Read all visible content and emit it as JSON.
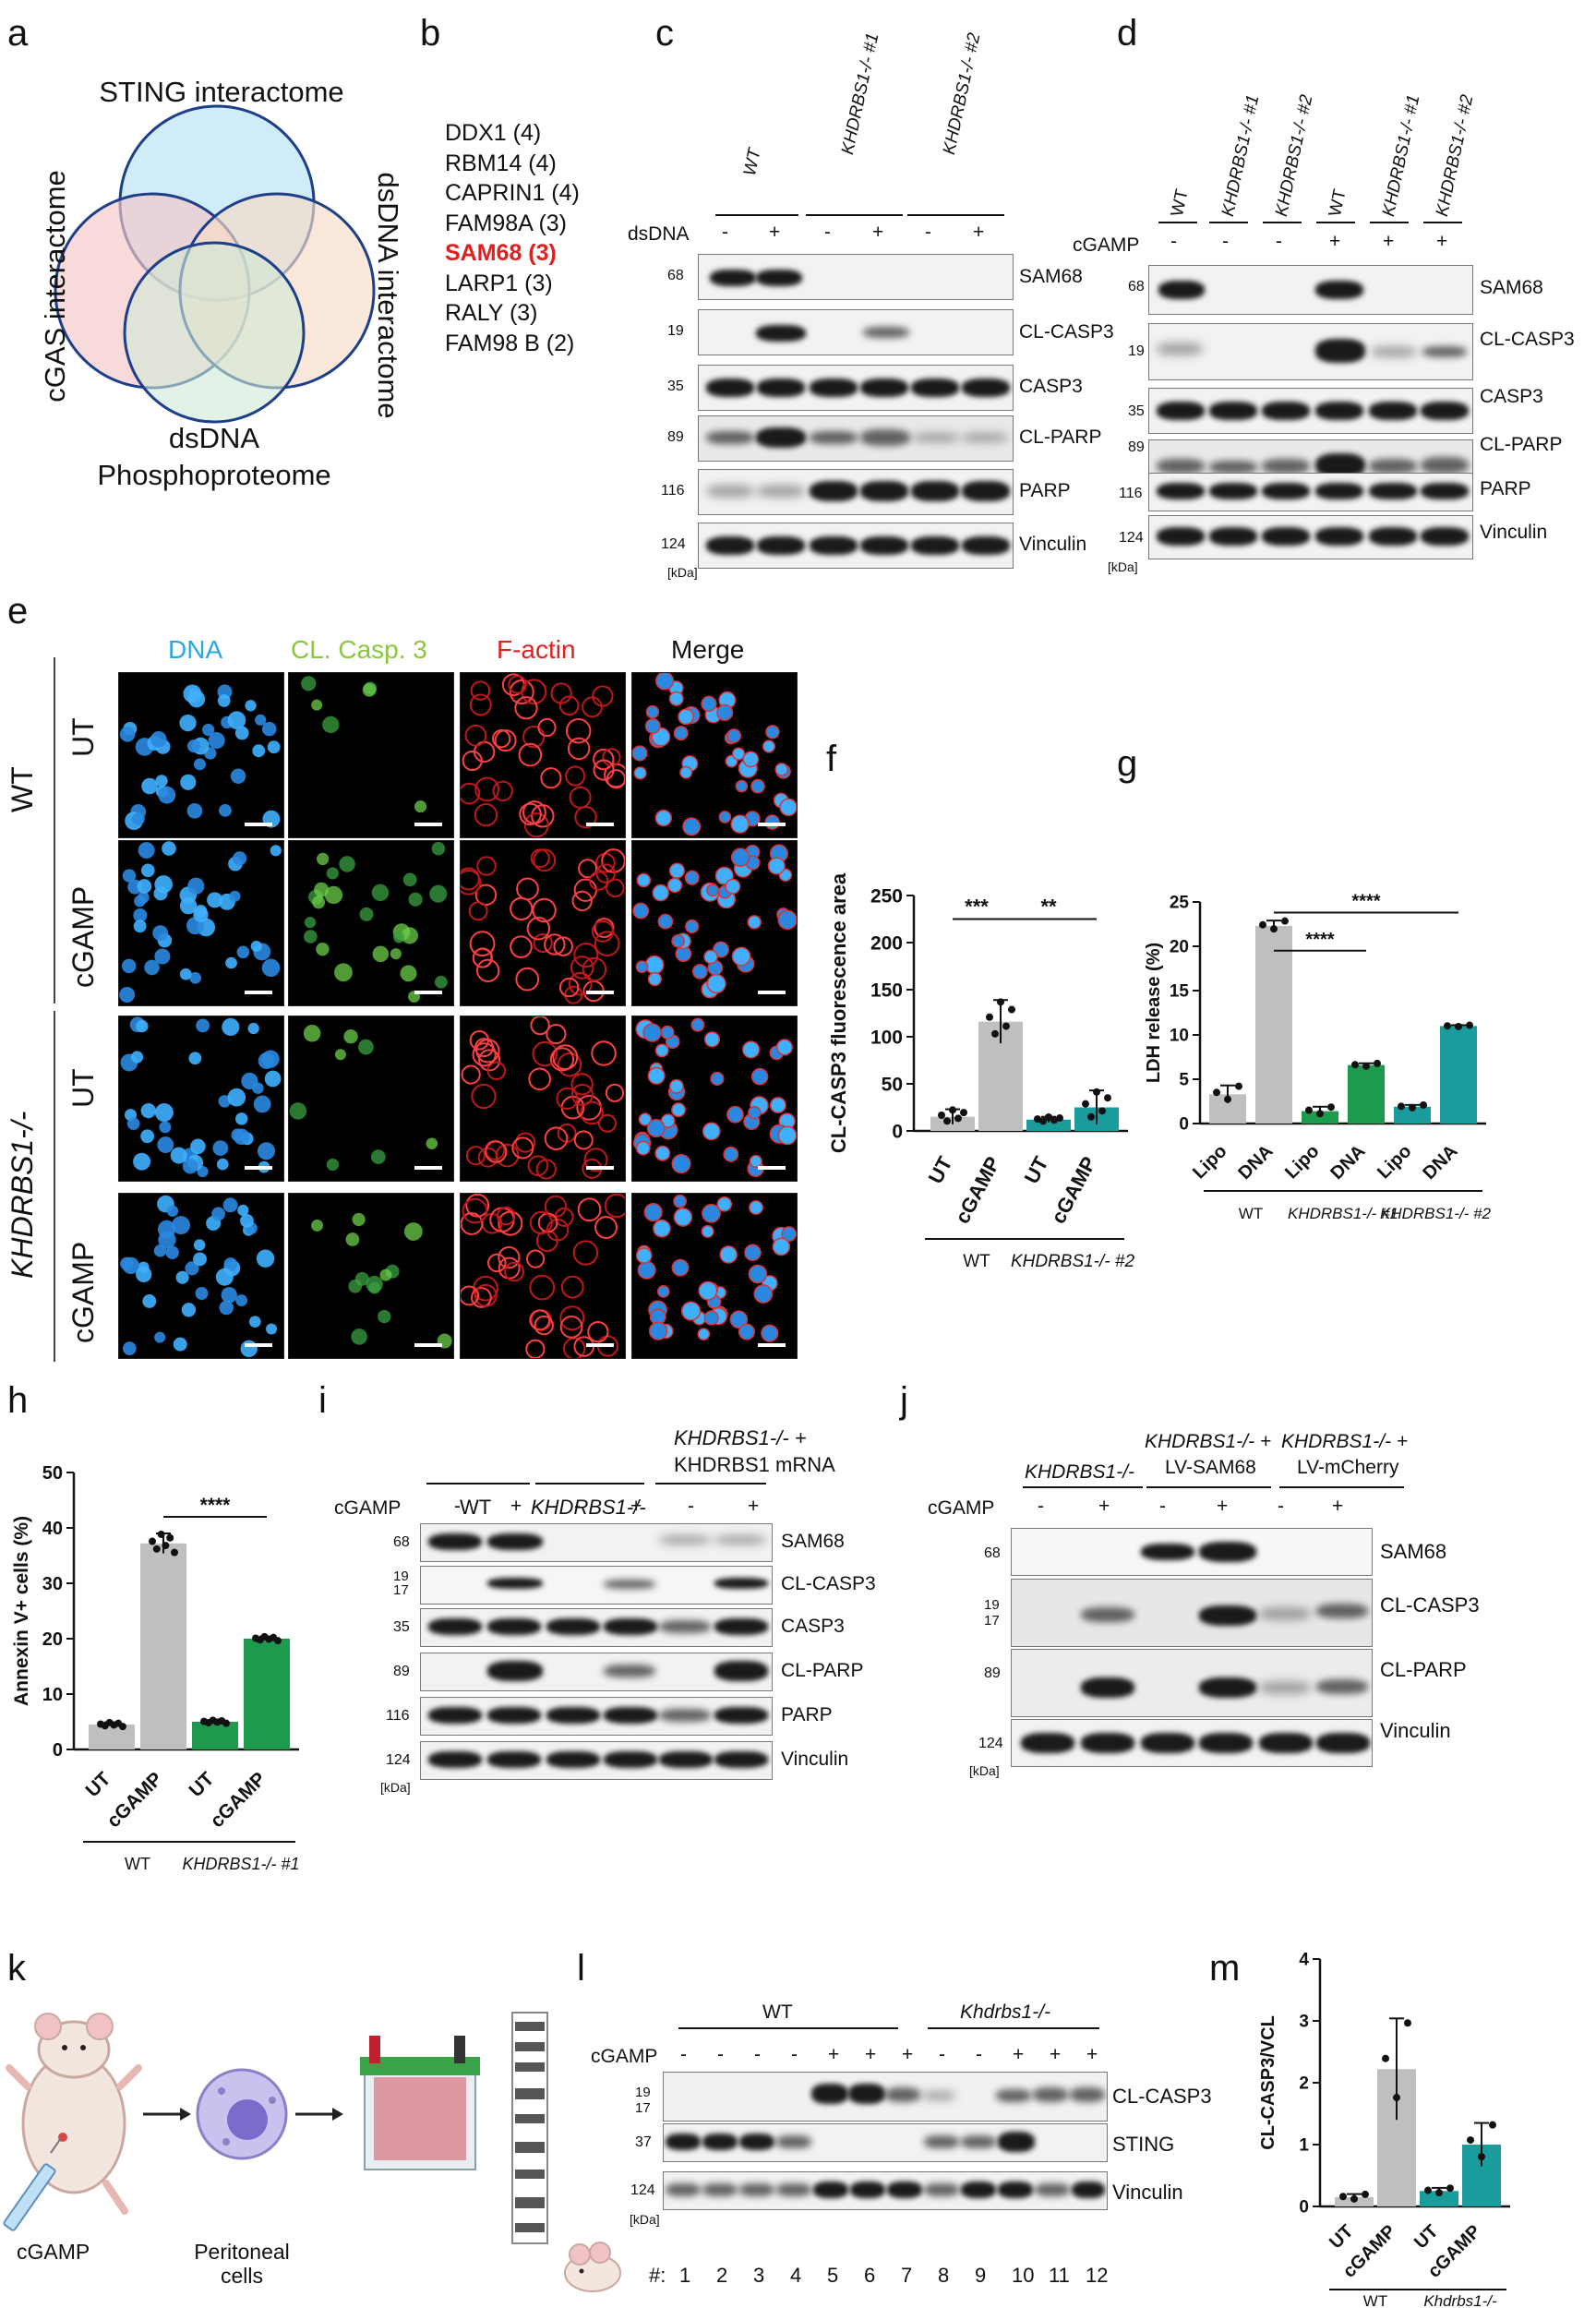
{
  "panel_labels": {
    "a": "a",
    "b": "b",
    "c": "c",
    "d": "d",
    "e": "e",
    "f": "f",
    "g": "g",
    "h": "h",
    "i": "i",
    "j": "j",
    "k": "k",
    "l": "l",
    "m": "m"
  },
  "panel_a": {
    "sting": "STING interactome",
    "cgas": "cGAS interactome",
    "dsdna": "dsDNA interactome",
    "phospho_1": "dsDNA",
    "phospho_2": "Phosphoproteome",
    "colors": {
      "sting": "#bfe6f5",
      "cgas": "#f6c6c6",
      "dsdna": "#f8dcc6",
      "phospho": "#cfe9d6"
    }
  },
  "panel_b": {
    "items": [
      "DDX1 (4)",
      "RBM14 (4)",
      "CAPRIN1 (4)",
      "FAM98A (3)",
      "SAM68 (3)",
      "LARP1 (3)",
      "RALY (3)",
      "FAM98 B (2)"
    ],
    "highlight_color": "#e02020"
  },
  "panel_c": {
    "groups": [
      "WT",
      "KHDRBS1-/- #1",
      "KHDRBS1-/- #2"
    ],
    "treatment": "dsDNA",
    "signs": [
      "-",
      "+",
      "-",
      "+",
      "-",
      "+"
    ],
    "rows": [
      {
        "mw": "68",
        "name": "SAM68"
      },
      {
        "mw": "19",
        "name": "CL-CASP3"
      },
      {
        "mw": "35",
        "name": "CASP3"
      },
      {
        "mw": "89",
        "name": "CL-PARP"
      },
      {
        "mw": "116",
        "name": "PARP"
      },
      {
        "mw": "124",
        "name": "Vinculin"
      }
    ],
    "unit": "[kDa]"
  },
  "panel_d": {
    "groups": [
      "WT",
      "KHDRBS1-/- #1",
      "KHDRBS1-/- #2",
      "WT",
      "KHDRBS1-/- #1",
      "KHDRBS1-/- #2"
    ],
    "treatment": "cGAMP",
    "signs": [
      "-",
      "-",
      "-",
      "+",
      "+",
      "+"
    ],
    "rows": [
      {
        "mw": "68",
        "name": "SAM68"
      },
      {
        "mw": "19",
        "name": "CL-CASP3"
      },
      {
        "mw": "35",
        "name": "CASP3"
      },
      {
        "mw": "89",
        "name": "CL-PARP"
      },
      {
        "mw": "116",
        "name": "PARP"
      },
      {
        "mw": "124",
        "name": "Vinculin"
      }
    ],
    "unit": "[kDa]"
  },
  "panel_e": {
    "columns": [
      "DNA",
      "CL. Casp. 3",
      "F-actin",
      "Merge"
    ],
    "column_colors": [
      "#2aa7e0",
      "#8cc63f",
      "#e02020",
      "#111111"
    ],
    "group_wt": "WT",
    "group_ko": "KHDRBS1-/-",
    "rows": [
      "UT",
      "cGAMP",
      "UT",
      "cGAMP"
    ]
  },
  "panel_f": {
    "chart_data": {
      "type": "bar",
      "ylabel": "CL-CASP3 fluorescence area",
      "ylim": [
        0,
        250
      ],
      "yticks": [
        0,
        50,
        100,
        150,
        200,
        250
      ],
      "categories": [
        "UT",
        "cGAMP",
        "UT",
        "cGAMP"
      ],
      "values": [
        15,
        116,
        12,
        25
      ],
      "errors": [
        8,
        23,
        3,
        18
      ],
      "colors": [
        "#bfbfbf",
        "#bfbfbf",
        "#1a9c9c",
        "#1a9c9c"
      ],
      "groups": [
        "WT",
        "KHDRBS1-/- #2"
      ],
      "significance": [
        "***",
        "**"
      ]
    }
  },
  "panel_g": {
    "chart_data": {
      "type": "bar",
      "ylabel": "LDH release (%)",
      "ylim": [
        0,
        25
      ],
      "yticks": [
        0,
        5,
        10,
        15,
        20,
        25
      ],
      "categories": [
        "Lipo",
        "DNA",
        "Lipo",
        "DNA",
        "Lipo",
        "DNA"
      ],
      "values": [
        3.3,
        22.3,
        1.4,
        6.6,
        1.9,
        11.0
      ],
      "errors": [
        1.0,
        0.6,
        0.5,
        0.2,
        0.2,
        0.1
      ],
      "colors": [
        "#bfbfbf",
        "#bfbfbf",
        "#1e9a4f",
        "#1e9a4f",
        "#1a9c9c",
        "#1a9c9c"
      ],
      "groups": [
        "WT",
        "KHDRBS1-/- #1",
        "KHDRBS1-/- #2"
      ],
      "significance": [
        "****",
        "****"
      ]
    }
  },
  "panel_h": {
    "chart_data": {
      "type": "bar",
      "ylabel": "Annexin V+ cells (%)",
      "ylim": [
        0,
        50
      ],
      "yticks": [
        0,
        10,
        20,
        30,
        40,
        50
      ],
      "categories": [
        "UT",
        "cGAMP",
        "UT",
        "cGAMP"
      ],
      "values": [
        4.5,
        37.2,
        5.0,
        20.0
      ],
      "errors": [
        0.4,
        1.8,
        0.3,
        0.4
      ],
      "colors": [
        "#bfbfbf",
        "#bfbfbf",
        "#1e9a4f",
        "#1e9a4f"
      ],
      "groups": [
        "WT",
        "KHDRBS1-/- #1"
      ],
      "significance": [
        "****"
      ]
    }
  },
  "panel_i": {
    "groups": [
      "WT",
      "KHDRBS1-/-",
      "KHDRBS1-/- +",
      "KHDRBS1 mRNA"
    ],
    "treatment": "cGAMP",
    "signs": [
      "-",
      "+",
      "-",
      "+",
      "-",
      "+"
    ],
    "rows": [
      {
        "mw": "68",
        "name": "SAM68"
      },
      {
        "mw": "19\n17",
        "name": "CL-CASP3"
      },
      {
        "mw": "35",
        "name": "CASP3"
      },
      {
        "mw": "89",
        "name": "CL-PARP"
      },
      {
        "mw": "116",
        "name": "PARP"
      },
      {
        "mw": "124",
        "name": "Vinculin"
      }
    ],
    "unit": "[kDa]"
  },
  "panel_j": {
    "groups": [
      "KHDRBS1-/-",
      "KHDRBS1-/- +",
      "LV-SAM68",
      "KHDRBS1-/- +",
      "LV-mCherry"
    ],
    "treatment": "cGAMP",
    "signs": [
      "-",
      "+",
      "-",
      "+",
      "-",
      "+"
    ],
    "rows": [
      {
        "mw": "68",
        "name": "SAM68"
      },
      {
        "mw": "19\n17",
        "name": "CL-CASP3"
      },
      {
        "mw": "89",
        "name": "CL-PARP"
      },
      {
        "mw": "124",
        "name": "Vinculin"
      }
    ],
    "unit": "[kDa]"
  },
  "panel_k": {
    "injection": "cGAMP",
    "cells_1": "Peritoneal",
    "cells_2": "cells"
  },
  "panel_l": {
    "groups": [
      "WT",
      "Khdrbs1-/-"
    ],
    "treatment": "cGAMP",
    "signs": [
      "-",
      "-",
      "-",
      "-",
      "+",
      "+",
      "+",
      "-",
      "-",
      "+",
      "+",
      "+"
    ],
    "rows": [
      {
        "mw": "19\n17",
        "name": "CL-CASP3"
      },
      {
        "mw": "37",
        "name": "STING"
      },
      {
        "mw": "124",
        "name": "Vinculin"
      }
    ],
    "unit": "[kDa]",
    "lane_prefix": "#:",
    "lanes": [
      "1",
      "2",
      "3",
      "4",
      "5",
      "6",
      "7",
      "8",
      "9",
      "10",
      "11",
      "12"
    ]
  },
  "panel_m": {
    "chart_data": {
      "type": "bar",
      "ylabel": "CL-CASP3/VCL",
      "ylim": [
        0,
        4
      ],
      "yticks": [
        0,
        1,
        2,
        3,
        4
      ],
      "categories": [
        "UT",
        "cGAMP",
        "UT",
        "cGAMP"
      ],
      "values": [
        0.15,
        2.22,
        0.25,
        1.0
      ],
      "errors": [
        0.05,
        0.82,
        0.05,
        0.35
      ],
      "colors": [
        "#bfbfbf",
        "#bfbfbf",
        "#1a9c9c",
        "#1a9c9c"
      ],
      "groups": [
        "WT",
        "Khdrbs1-/-"
      ]
    }
  }
}
